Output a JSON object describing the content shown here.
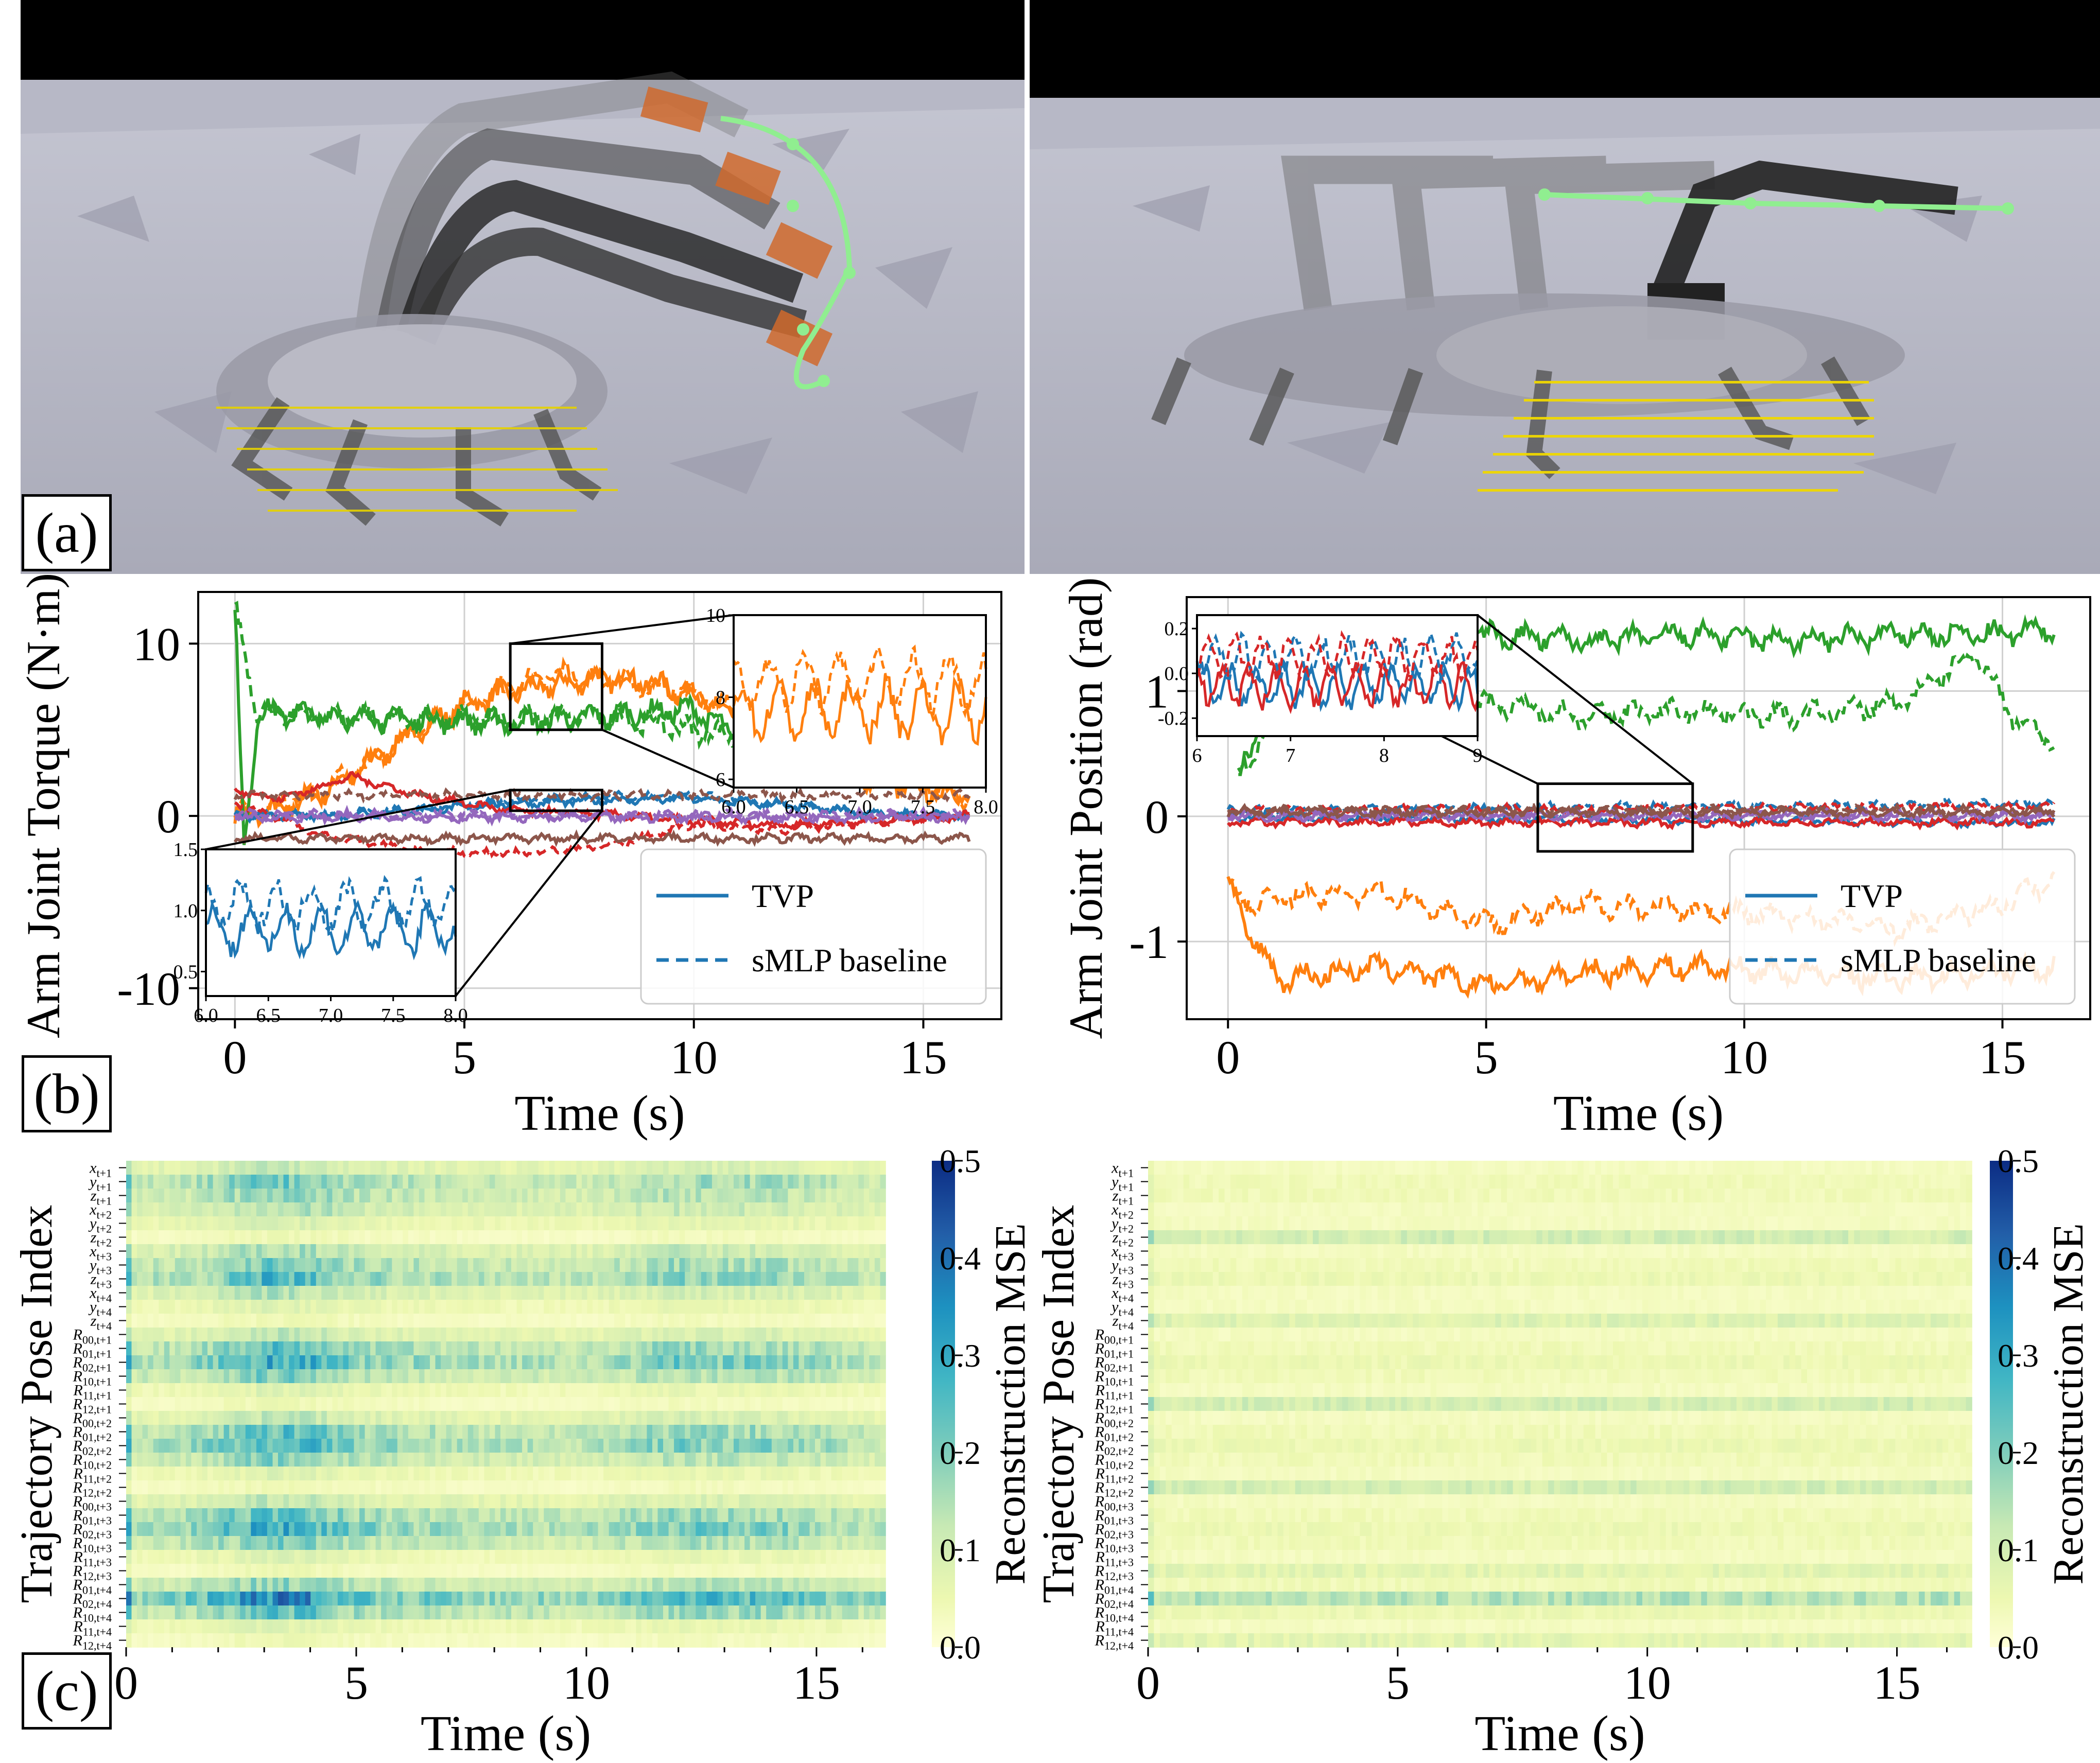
{
  "panel_labels": {
    "a": "(a)",
    "b": "(b)",
    "c": "(c)"
  },
  "chart_data": [
    {
      "id": "b-left",
      "type": "line",
      "xlabel": "Time (s)",
      "ylabel": "Arm Joint Torque (N·m)",
      "xlim": [
        -0.8,
        16.7
      ],
      "ylim": [
        -11.8,
        13
      ],
      "xticks": [
        0,
        5,
        10,
        15
      ],
      "yticks": [
        10,
        0,
        -10
      ],
      "ytick_labels": [
        "10",
        "0",
        "-10"
      ],
      "grid": true,
      "legend": {
        "placement": "lower-right",
        "entries": [
          {
            "label": "TVP",
            "style": "solid",
            "color": "#1f77b4"
          },
          {
            "label": "sMLP baseline",
            "style": "dashed",
            "color": "#1f77b4"
          }
        ]
      },
      "series": [
        {
          "color": "#ff7f0e",
          "tvp": [
            [
              0,
              0
            ],
            [
              1,
              0.3
            ],
            [
              2,
              1.5
            ],
            [
              3,
              3.2
            ],
            [
              4,
              5
            ],
            [
              5,
              6.5
            ],
            [
              6,
              7.2
            ],
            [
              7,
              7.6
            ],
            [
              8,
              8
            ],
            [
              9,
              7.8
            ],
            [
              10,
              7
            ],
            [
              11,
              5.5
            ],
            [
              12,
              4
            ],
            [
              13,
              3
            ],
            [
              14,
              2
            ],
            [
              15,
              1.5
            ],
            [
              16,
              1.2
            ]
          ],
          "baseline": [
            [
              0,
              0
            ],
            [
              2,
              1.5
            ],
            [
              4,
              5
            ],
            [
              6,
              7.5
            ],
            [
              7,
              8.2
            ],
            [
              8,
              8
            ],
            [
              10,
              7.2
            ],
            [
              12,
              4.5
            ],
            [
              14,
              2.5
            ],
            [
              16,
              1.2
            ]
          ]
        },
        {
          "color": "#2ca02c",
          "tvp": [
            [
              0,
              12
            ],
            [
              0.2,
              -2
            ],
            [
              0.5,
              6
            ],
            [
              2,
              5.8
            ],
            [
              4,
              5.6
            ],
            [
              6,
              5.4
            ],
            [
              8,
              5.8
            ],
            [
              10,
              6.2
            ],
            [
              11,
              4.5
            ]
          ],
          "baseline": [
            [
              0,
              12
            ],
            [
              0.5,
              6
            ],
            [
              4,
              5.6
            ],
            [
              8,
              5.8
            ],
            [
              11,
              4.6
            ]
          ]
        },
        {
          "color": "#1f77b4",
          "tvp": [
            [
              0,
              0
            ],
            [
              2,
              0
            ],
            [
              4,
              0.3
            ],
            [
              6,
              0.7
            ],
            [
              7,
              0.8
            ],
            [
              8,
              0.9
            ],
            [
              10,
              1
            ],
            [
              12,
              0.6
            ],
            [
              14,
              0.1
            ],
            [
              16,
              0
            ]
          ],
          "baseline": [
            [
              0,
              0
            ],
            [
              2,
              0.1
            ],
            [
              4,
              0.4
            ],
            [
              6,
              0.9
            ],
            [
              7,
              1.0
            ],
            [
              8,
              1.1
            ],
            [
              10,
              1.2
            ],
            [
              12,
              0.7
            ],
            [
              14,
              0.1
            ],
            [
              16,
              0
            ]
          ]
        },
        {
          "color": "#d62728",
          "tvp": [
            [
              0,
              1.5
            ],
            [
              1,
              1.0
            ],
            [
              2,
              1.8
            ],
            [
              2.5,
              2.3
            ],
            [
              4,
              1.2
            ],
            [
              6,
              0.3
            ],
            [
              8,
              0.1
            ],
            [
              10,
              -0.3
            ],
            [
              12,
              -0.5
            ],
            [
              14,
              -0.3
            ],
            [
              16,
              0
            ]
          ],
          "baseline": [
            [
              0,
              0.8
            ],
            [
              2,
              -1.2
            ],
            [
              4,
              -2
            ],
            [
              6,
              -2.2
            ],
            [
              8,
              -1.8
            ],
            [
              10,
              -0.5
            ],
            [
              12,
              -0.8
            ],
            [
              14,
              -0.3
            ],
            [
              16,
              0
            ]
          ]
        },
        {
          "color": "#8c564b",
          "tvp": [
            [
              0,
              -1.3
            ],
            [
              16,
              -1.3
            ]
          ],
          "baseline": [
            [
              0,
              1.2
            ],
            [
              16,
              1.2
            ]
          ]
        },
        {
          "color": "#9467bd",
          "tvp": [
            [
              0,
              -0.1
            ],
            [
              16,
              -0.1
            ]
          ],
          "baseline": [
            [
              0,
              0.1
            ],
            [
              16,
              0.1
            ]
          ]
        }
      ],
      "insets": [
        {
          "id": "orange-zoom",
          "xlim": [
            6.0,
            8.0
          ],
          "ylim": [
            5.8,
            10
          ],
          "xticks": [
            6.0,
            6.5,
            7.0,
            7.5,
            8.0
          ],
          "yticks": [
            6,
            8,
            10
          ],
          "zoom_box": {
            "x": [
              6,
              8
            ],
            "y": [
              5,
              10
            ]
          }
        },
        {
          "id": "blue-zoom",
          "xlim": [
            6.0,
            8.0
          ],
          "ylim": [
            0.3,
            1.5
          ],
          "xticks": [
            6.0,
            6.5,
            7.0,
            7.5,
            8.0
          ],
          "yticks": [
            0.5,
            1.0,
            1.5
          ],
          "zoom_box": {
            "x": [
              6,
              8
            ],
            "y": [
              0.3,
              1.5
            ]
          }
        }
      ]
    },
    {
      "id": "b-right",
      "type": "line",
      "xlabel": "Time (s)",
      "ylabel": "Arm Joint Position (rad)",
      "xlim": [
        -0.8,
        16.7
      ],
      "ylim": [
        -1.62,
        1.75
      ],
      "xticks": [
        0,
        5,
        10,
        15
      ],
      "yticks": [
        1,
        0,
        -1
      ],
      "ytick_labels": [
        "1",
        "0",
        "-1"
      ],
      "grid": true,
      "legend": {
        "placement": "lower-right",
        "entries": [
          {
            "label": "TVP",
            "style": "solid",
            "color": "#1f77b4"
          },
          {
            "label": "sMLP baseline",
            "style": "dashed",
            "color": "#1f77b4"
          }
        ]
      },
      "series": [
        {
          "color": "#2ca02c",
          "tvp": [
            [
              0.2,
              0.3
            ],
            [
              1,
              1.2
            ],
            [
              3,
              1.35
            ],
            [
              5,
              1.45
            ],
            [
              7,
              1.4
            ],
            [
              9,
              1.45
            ],
            [
              11,
              1.4
            ],
            [
              13,
              1.45
            ],
            [
              15,
              1.45
            ],
            [
              16,
              1.5
            ]
          ],
          "baseline": [
            [
              0.2,
              0.3
            ],
            [
              1,
              0.9
            ],
            [
              3,
              1.1
            ],
            [
              5,
              0.9
            ],
            [
              7,
              0.8
            ],
            [
              9,
              0.85
            ],
            [
              11,
              0.8
            ],
            [
              13,
              0.9
            ],
            [
              14.5,
              1.3
            ],
            [
              15.2,
              0.8
            ],
            [
              16,
              0.6
            ]
          ]
        },
        {
          "color": "#ff7f0e",
          "tvp": [
            [
              0,
              -0.55
            ],
            [
              0.5,
              -1.0
            ],
            [
              1,
              -1.3
            ],
            [
              3,
              -1.2
            ],
            [
              5,
              -1.35
            ],
            [
              7,
              -1.25
            ],
            [
              9,
              -1.2
            ],
            [
              11,
              -1.25
            ],
            [
              13,
              -1.3
            ],
            [
              16,
              -1.2
            ]
          ],
          "baseline": [
            [
              0,
              -0.55
            ],
            [
              0.5,
              -0.7
            ],
            [
              1,
              -0.65
            ],
            [
              3,
              -0.6
            ],
            [
              5,
              -0.85
            ],
            [
              7,
              -0.7
            ],
            [
              9,
              -0.75
            ],
            [
              11,
              -0.8
            ],
            [
              13,
              -0.9
            ],
            [
              15,
              -0.7
            ],
            [
              16,
              -0.5
            ]
          ]
        },
        {
          "color": "#1f77b4",
          "tvp": [
            [
              0,
              0
            ],
            [
              16,
              -0.05
            ]
          ],
          "baseline": [
            [
              0,
              0.05
            ],
            [
              16,
              0.1
            ]
          ]
        },
        {
          "color": "#d62728",
          "tvp": [
            [
              0,
              -0.05
            ],
            [
              16,
              -0.05
            ]
          ],
          "baseline": [
            [
              0,
              0.05
            ],
            [
              16,
              0.08
            ]
          ]
        },
        {
          "color": "#9467bd",
          "tvp": [
            [
              0,
              0
            ],
            [
              16,
              0
            ]
          ],
          "baseline": [
            [
              0,
              0.02
            ],
            [
              16,
              0.02
            ]
          ]
        },
        {
          "color": "#8c564b",
          "tvp": [
            [
              0,
              0.03
            ],
            [
              16,
              0.03
            ]
          ],
          "baseline": [
            [
              0,
              0.05
            ],
            [
              16,
              0.05
            ]
          ]
        }
      ],
      "insets": [
        {
          "id": "joint-zoom",
          "xlim": [
            6,
            9
          ],
          "ylim": [
            -0.28,
            0.26
          ],
          "xticks": [
            6,
            7,
            8,
            9
          ],
          "yticks": [
            0.2,
            0.0,
            -0.2
          ],
          "zoom_box": {
            "x": [
              6,
              9
            ],
            "y": [
              -0.28,
              0.26
            ]
          }
        }
      ]
    },
    {
      "id": "c-left",
      "type": "heatmap",
      "xlabel": "Time (s)",
      "ylabel": "Trajectory Pose Index",
      "colorbar_label": "Reconstruction MSE",
      "colorbar_ticks": [
        "0.5",
        "0.4",
        "0.3",
        "0.2",
        "0.1",
        "0.0"
      ],
      "xticks": [
        0,
        5,
        10,
        15
      ],
      "xlim": [
        0,
        16.5
      ],
      "rows": [
        "x_{t+1}",
        "y_{t+1}",
        "z_{t+1}",
        "x_{t+2}",
        "y_{t+2}",
        "z_{t+2}",
        "x_{t+3}",
        "y_{t+3}",
        "z_{t+3}",
        "x_{t+4}",
        "y_{t+4}",
        "z_{t+4}",
        "R_{00,t+1}",
        "R_{01,t+1}",
        "R_{02,t+1}",
        "R_{10,t+1}",
        "R_{11,t+1}",
        "R_{12,t+1}",
        "R_{00,t+2}",
        "R_{01,t+2}",
        "R_{02,t+2}",
        "R_{10,t+2}",
        "R_{11,t+2}",
        "R_{12,t+2}",
        "R_{00,t+3}",
        "R_{01,t+3}",
        "R_{02,t+3}",
        "R_{10,t+3}",
        "R_{11,t+3}",
        "R_{12,t+3}",
        "R_{01,t+4}",
        "R_{02,t+4}",
        "R_{10,t+4}",
        "R_{11,t+4}",
        "R_{12,t+4}"
      ],
      "row_intensity": [
        0.08,
        0.14,
        0.12,
        0.1,
        0.06,
        0.03,
        0.1,
        0.14,
        0.16,
        0.09,
        0.05,
        0.03,
        0.08,
        0.15,
        0.18,
        0.13,
        0.05,
        0.03,
        0.08,
        0.15,
        0.17,
        0.12,
        0.05,
        0.03,
        0.08,
        0.15,
        0.18,
        0.13,
        0.05,
        0.03,
        0.12,
        0.22,
        0.15,
        0.05,
        0.03
      ],
      "time_profile": [
        [
          0,
          0.8
        ],
        [
          1.5,
          1.0
        ],
        [
          3,
          1.6
        ],
        [
          4,
          1.5
        ],
        [
          5,
          1.1
        ],
        [
          7,
          0.9
        ],
        [
          10,
          0.8
        ],
        [
          12,
          1.2
        ],
        [
          13,
          1.1
        ],
        [
          14,
          1.1
        ],
        [
          16,
          0.8
        ]
      ]
    },
    {
      "id": "c-right",
      "type": "heatmap",
      "xlabel": "Time (s)",
      "ylabel": "Trajectory Pose Index",
      "colorbar_label": "Reconstruction MSE",
      "colorbar_ticks": [
        "0.5",
        "0.4",
        "0.3",
        "0.2",
        "0.1",
        "0.0"
      ],
      "xticks": [
        0,
        5,
        10,
        15
      ],
      "xlim": [
        0,
        16.5
      ],
      "rows": [
        "x_{t+1}",
        "y_{t+1}",
        "z_{t+1}",
        "x_{t+2}",
        "y_{t+2}",
        "z_{t+2}",
        "x_{t+3}",
        "y_{t+3}",
        "z_{t+3}",
        "x_{t+4}",
        "y_{t+4}",
        "z_{t+4}",
        "R_{00,t+1}",
        "R_{01,t+1}",
        "R_{02,t+1}",
        "R_{10,t+1}",
        "R_{11,t+1}",
        "R_{12,t+1}",
        "R_{00,t+2}",
        "R_{01,t+2}",
        "R_{02,t+2}",
        "R_{10,t+2}",
        "R_{11,t+2}",
        "R_{12,t+2}",
        "R_{00,t+3}",
        "R_{01,t+3}",
        "R_{02,t+3}",
        "R_{10,t+3}",
        "R_{11,t+3}",
        "R_{12,t+3}",
        "R_{01,t+4}",
        "R_{02,t+4}",
        "R_{10,t+4}",
        "R_{11,t+4}",
        "R_{12,t+4}"
      ],
      "row_intensity": [
        0.03,
        0.04,
        0.04,
        0.03,
        0.03,
        0.1,
        0.03,
        0.04,
        0.05,
        0.03,
        0.03,
        0.08,
        0.03,
        0.04,
        0.05,
        0.04,
        0.03,
        0.1,
        0.03,
        0.04,
        0.05,
        0.04,
        0.03,
        0.1,
        0.03,
        0.04,
        0.05,
        0.04,
        0.03,
        0.07,
        0.04,
        0.14,
        0.05,
        0.03,
        0.07
      ],
      "time_profile": [
        [
          0,
          1.0
        ],
        [
          16,
          1.0
        ]
      ]
    }
  ]
}
